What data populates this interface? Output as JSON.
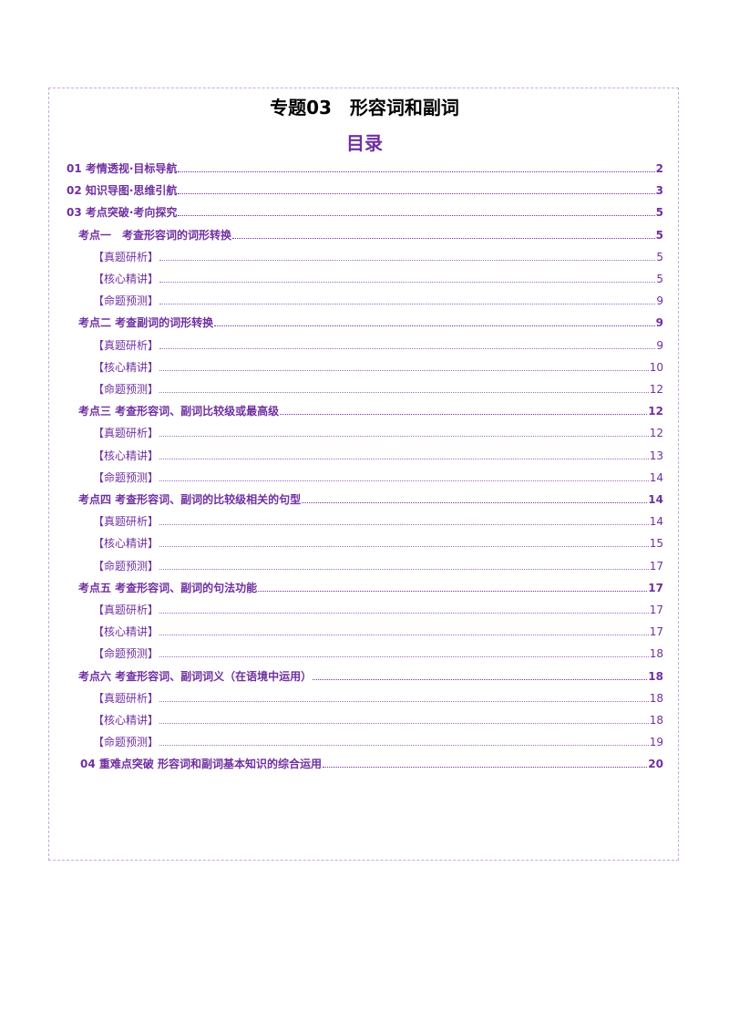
{
  "title": "专题03　形容词和副词",
  "toc_heading": "目录",
  "toc": [
    {
      "label": "01 考情透视·目标导航",
      "page": "2",
      "level": 0
    },
    {
      "label": "02 知识导图·思维引航",
      "page": "3",
      "level": 0
    },
    {
      "label": "03 考点突破·考向探究",
      "page": "5",
      "level": 0
    },
    {
      "label": "考点一　考查形容词的词形转换",
      "page": "5",
      "level": 1
    },
    {
      "label": "【真题研析】",
      "page": "5",
      "level": 2
    },
    {
      "label": "【核心精讲】",
      "page": "5",
      "level": 2
    },
    {
      "label": "【命题预测】",
      "page": "9",
      "level": 2
    },
    {
      "label": "考点二  考查副词的词形转换",
      "page": "9",
      "level": 1
    },
    {
      "label": "【真题研析】",
      "page": "9",
      "level": 2
    },
    {
      "label": "【核心精讲】",
      "page": "10",
      "level": 2
    },
    {
      "label": "【命题预测】",
      "page": "12",
      "level": 2
    },
    {
      "label": "考点三  考查形容词、副词比较级或最高级",
      "page": "12",
      "level": 1
    },
    {
      "label": "【真题研析】",
      "page": "12",
      "level": 2
    },
    {
      "label": "【核心精讲】",
      "page": "13",
      "level": 2
    },
    {
      "label": "【命题预测】",
      "page": "14",
      "level": 2
    },
    {
      "label": "考点四  考查形容词、副词的比较级相关的句型",
      "page": "14",
      "level": 1
    },
    {
      "label": "【真题研析】",
      "page": "14",
      "level": 2
    },
    {
      "label": "【核心精讲】",
      "page": "15",
      "level": 2
    },
    {
      "label": "【命题预测】",
      "page": "17",
      "level": 2
    },
    {
      "label": "考点五  考查形容词、副词的句法功能",
      "page": "17",
      "level": 1
    },
    {
      "label": "【真题研析】",
      "page": "17",
      "level": 2
    },
    {
      "label": "【核心精讲】",
      "page": "17",
      "level": 2
    },
    {
      "label": "【命题预测】",
      "page": "18",
      "level": 2
    },
    {
      "label": "考点六  考查形容词、副词词义（在语境中运用）",
      "page": "18",
      "level": 1
    },
    {
      "label": "【真题研析】",
      "page": "18",
      "level": 2
    },
    {
      "label": "【核心精讲】",
      "page": "18",
      "level": 2
    },
    {
      "label": "【命题预测】",
      "page": "19",
      "level": 2
    },
    {
      "label": "04  重难点突破  形容词和副词基本知识的综合运用",
      "page": "20",
      "level": 3
    }
  ],
  "colors": {
    "accent": "#7030a0",
    "border": "#c9a9e0"
  }
}
